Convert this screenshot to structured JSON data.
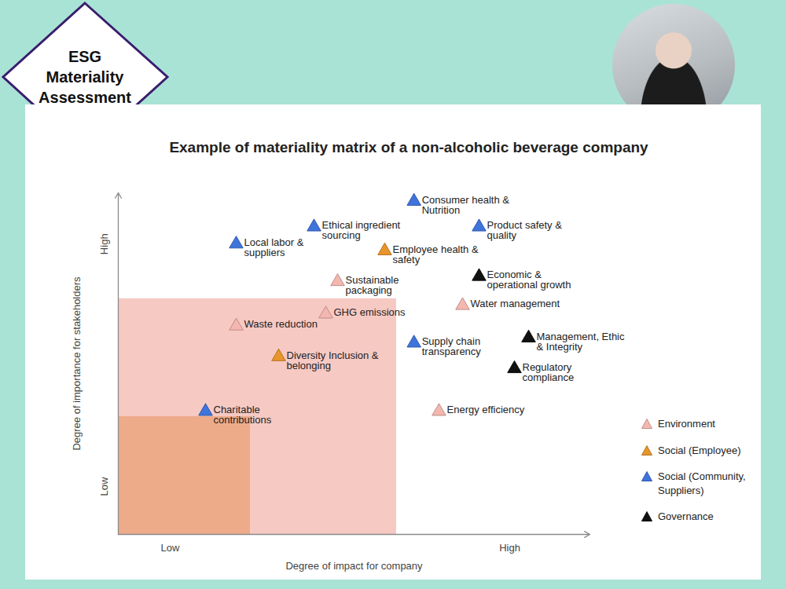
{
  "header": {
    "badge": "ESG Materiality Assessment"
  },
  "chart_data": {
    "type": "scatter",
    "title": "Example of materiality matrix of a non-alcoholic beverage company",
    "x_label": "Degree of impact for company",
    "y_label": "Degree of importance for stakeholders",
    "xlim": [
      0,
      10
    ],
    "ylim": [
      0,
      10
    ],
    "xticks": [
      {
        "value": 1.1,
        "label": "Low"
      },
      {
        "value": 8.3,
        "label": "High"
      }
    ],
    "yticks": [
      {
        "value": 1.4,
        "label": "Low"
      },
      {
        "value": 8.5,
        "label": "High"
      }
    ],
    "grid": false,
    "legend": "right",
    "marker": "triangle",
    "regions": [
      {
        "x": [
          0,
          5.9
        ],
        "y": [
          0,
          6.9
        ],
        "color": "#f6c9c3"
      },
      {
        "x": [
          0,
          2.8
        ],
        "y": [
          0,
          3.45
        ],
        "color": "#eeab8a"
      }
    ],
    "series": [
      {
        "name": "Environment",
        "color": "#f4b7b0",
        "x": [
          4.65,
          7.3,
          4.4,
          2.5,
          6.8
        ],
        "values": [
          7.4,
          6.7,
          6.45,
          6.1,
          3.6
        ],
        "labels": [
          "Sustainable packaging",
          "Water management",
          "GHG emissions",
          "Waste reduction",
          "Energy efficiency"
        ]
      },
      {
        "name": "Social (Employee)",
        "color": "#e8952c",
        "x": [
          5.65,
          3.4
        ],
        "values": [
          8.3,
          5.2
        ],
        "labels": [
          "Employee health & safety",
          "Diversity Inclusion & belonging"
        ]
      },
      {
        "name": "Social (Community, Suppliers)",
        "color": "#3f74dc",
        "x": [
          2.5,
          4.15,
          6.27,
          7.65,
          6.27,
          1.85
        ],
        "values": [
          8.5,
          9.0,
          9.75,
          9.0,
          5.6,
          3.6
        ],
        "labels": [
          "Local labor & suppliers",
          "Ethical ingredient sourcing",
          "Consumer health & Nutrition",
          "Product safety & quality",
          "Supply chain transparency",
          "Charitable contributions"
        ]
      },
      {
        "name": "Governance",
        "color": "#111111",
        "x": [
          7.65,
          8.7,
          8.4
        ],
        "values": [
          7.55,
          5.75,
          4.85
        ],
        "labels": [
          "Economic & operational growth",
          "Management, Ethic & Integrity",
          "Regulatory compliance"
        ]
      }
    ]
  }
}
